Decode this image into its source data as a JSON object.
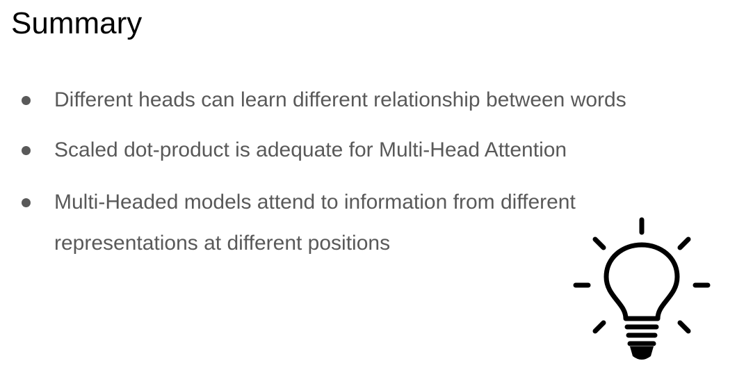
{
  "slide": {
    "title": "Summary",
    "bullets": [
      "Different heads can learn different relationship between words",
      "Scaled dot-product is adequate for Multi-Head Attention",
      "Multi-Headed models attend to information from different"
    ],
    "bullet_continuation": "representations at different positions",
    "icon": "lightbulb-icon"
  }
}
